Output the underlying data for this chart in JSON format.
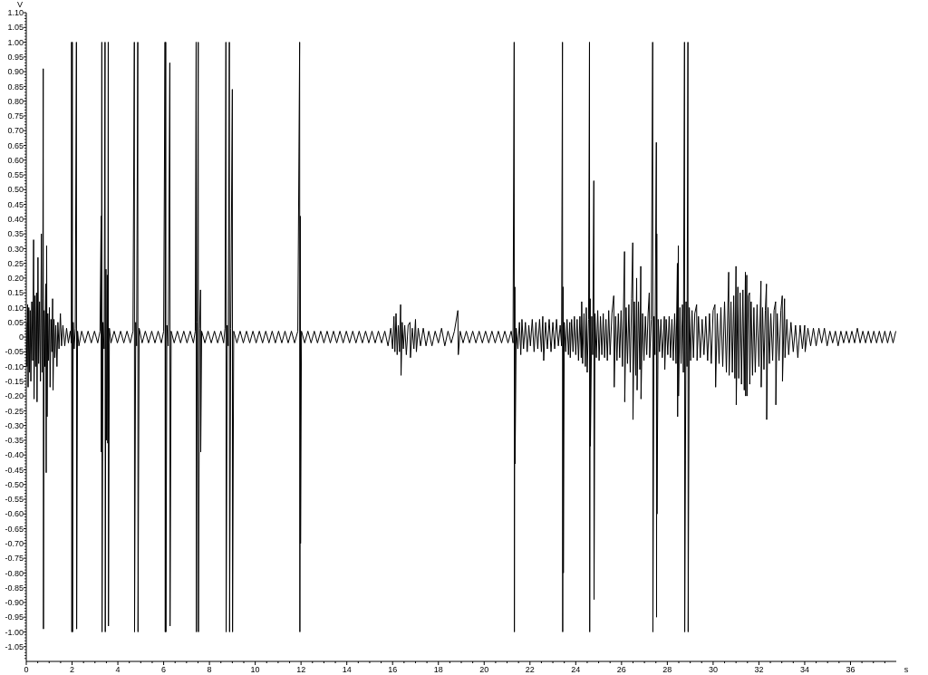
{
  "chart_data": {
    "type": "line",
    "xlabel": "s",
    "ylabel": "V",
    "color": "#000000",
    "marker": "none",
    "xlim": [
      0,
      38
    ],
    "ylim": [
      -1.1,
      1.1
    ],
    "xticks": [
      0,
      {
        "value": 0.5,
        "label": null
      },
      {
        "value": 1,
        "label": null
      },
      {
        "value": 1.5,
        "label": null
      },
      2,
      {
        "value": 2.5,
        "label": null
      },
      {
        "value": 3,
        "label": null
      },
      {
        "value": 3.5,
        "label": null
      },
      4,
      {
        "value": 4.5,
        "label": null
      },
      {
        "value": 5,
        "label": null
      },
      {
        "value": 5.5,
        "label": null
      },
      6,
      {
        "value": 6.5,
        "label": null
      },
      {
        "value": 7,
        "label": null
      },
      {
        "value": 7.5,
        "label": null
      },
      8,
      {
        "value": 8.5,
        "label": null
      },
      {
        "value": 9,
        "label": null
      },
      {
        "value": 9.5,
        "label": null
      },
      10,
      {
        "value": 10.5,
        "label": null
      },
      {
        "value": 11,
        "label": null
      },
      {
        "value": 11.5,
        "label": null
      },
      12,
      {
        "value": 12.5,
        "label": null
      },
      {
        "value": 13,
        "label": null
      },
      {
        "value": 13.5,
        "label": null
      },
      14,
      {
        "value": 14.5,
        "label": null
      },
      {
        "value": 15,
        "label": null
      },
      {
        "value": 15.5,
        "label": null
      },
      16,
      {
        "value": 16.5,
        "label": null
      },
      {
        "value": 17,
        "label": null
      },
      {
        "value": 17.5,
        "label": null
      },
      18,
      {
        "value": 18.5,
        "label": null
      },
      {
        "value": 19,
        "label": null
      },
      {
        "value": 19.5,
        "label": null
      },
      20,
      {
        "value": 20.5,
        "label": null
      },
      {
        "value": 21,
        "label": null
      },
      {
        "value": 21.5,
        "label": null
      },
      22,
      {
        "value": 22.5,
        "label": null
      },
      {
        "value": 23,
        "label": null
      },
      {
        "value": 23.5,
        "label": null
      },
      24,
      {
        "value": 24.5,
        "label": null
      },
      {
        "value": 25,
        "label": null
      },
      {
        "value": 25.5,
        "label": null
      },
      26,
      {
        "value": 26.5,
        "label": null
      },
      {
        "value": 27,
        "label": null
      },
      {
        "value": 27.5,
        "label": null
      },
      28,
      {
        "value": 28.5,
        "label": null
      },
      {
        "value": 29,
        "label": null
      },
      {
        "value": 29.5,
        "label": null
      },
      30,
      {
        "value": 30.5,
        "label": null
      },
      {
        "value": 31,
        "label": null
      },
      {
        "value": 31.5,
        "label": null
      },
      32,
      {
        "value": 32.5,
        "label": null
      },
      {
        "value": 33,
        "label": null
      },
      {
        "value": 33.5,
        "label": null
      },
      34,
      {
        "value": 34.5,
        "label": null
      },
      {
        "value": 35,
        "label": null
      },
      {
        "value": 35.5,
        "label": null
      },
      36,
      {
        "value": 36.5,
        "label": null
      },
      {
        "value": 37,
        "label": null
      },
      {
        "value": 37.5,
        "label": null
      }
    ],
    "yticks": [
      {
        "value": -1.09,
        "label": null
      },
      {
        "value": -1.08,
        "label": null
      },
      {
        "value": -1.07,
        "label": null
      },
      {
        "value": -1.06,
        "label": null
      },
      -1.05,
      {
        "value": -1.04,
        "label": null
      },
      {
        "value": -1.03,
        "label": null
      },
      {
        "value": -1.02,
        "label": null
      },
      {
        "value": -1.01,
        "label": null
      },
      {
        "value": -1,
        "label": "-1.00"
      },
      {
        "value": -0.99,
        "label": null
      },
      {
        "value": -0.98,
        "label": null
      },
      {
        "value": -0.97,
        "label": null
      },
      {
        "value": -0.96,
        "label": null
      },
      -0.95,
      {
        "value": -0.94,
        "label": null
      },
      {
        "value": -0.93,
        "label": null
      },
      {
        "value": -0.92,
        "label": null
      },
      {
        "value": -0.91,
        "label": null
      },
      {
        "value": -0.9,
        "label": "-0.90"
      },
      {
        "value": -0.89,
        "label": null
      },
      {
        "value": -0.88,
        "label": null
      },
      {
        "value": -0.87,
        "label": null
      },
      {
        "value": -0.86,
        "label": null
      },
      -0.85,
      {
        "value": -0.84,
        "label": null
      },
      {
        "value": -0.83,
        "label": null
      },
      {
        "value": -0.82,
        "label": null
      },
      {
        "value": -0.81,
        "label": null
      },
      {
        "value": -0.8,
        "label": "-0.80"
      },
      {
        "value": -0.79,
        "label": null
      },
      {
        "value": -0.78,
        "label": null
      },
      {
        "value": -0.77,
        "label": null
      },
      {
        "value": -0.76,
        "label": null
      },
      -0.75,
      {
        "value": -0.74,
        "label": null
      },
      {
        "value": -0.73,
        "label": null
      },
      {
        "value": -0.72,
        "label": null
      },
      {
        "value": -0.71,
        "label": null
      },
      {
        "value": -0.7,
        "label": "-0.70"
      },
      {
        "value": -0.69,
        "label": null
      },
      {
        "value": -0.68,
        "label": null
      },
      {
        "value": -0.67,
        "label": null
      },
      {
        "value": -0.66,
        "label": null
      },
      -0.65,
      {
        "value": -0.64,
        "label": null
      },
      {
        "value": -0.63,
        "label": null
      },
      {
        "value": -0.62,
        "label": null
      },
      {
        "value": -0.61,
        "label": null
      },
      {
        "value": -0.6,
        "label": "-0.60"
      },
      {
        "value": -0.59,
        "label": null
      },
      {
        "value": -0.58,
        "label": null
      },
      {
        "value": -0.57,
        "label": null
      },
      {
        "value": -0.56,
        "label": null
      },
      -0.55,
      {
        "value": -0.54,
        "label": null
      },
      {
        "value": -0.53,
        "label": null
      },
      {
        "value": -0.52,
        "label": null
      },
      {
        "value": -0.51,
        "label": null
      },
      {
        "value": -0.5,
        "label": "-0.50"
      },
      {
        "value": -0.49,
        "label": null
      },
      {
        "value": -0.48,
        "label": null
      },
      {
        "value": -0.47,
        "label": null
      },
      {
        "value": -0.46,
        "label": null
      },
      -0.45,
      {
        "value": -0.44,
        "label": null
      },
      {
        "value": -0.43,
        "label": null
      },
      {
        "value": -0.42,
        "label": null
      },
      {
        "value": -0.41,
        "label": null
      },
      {
        "value": -0.4,
        "label": "-0.40"
      },
      {
        "value": -0.39,
        "label": null
      },
      {
        "value": -0.38,
        "label": null
      },
      {
        "value": -0.37,
        "label": null
      },
      {
        "value": -0.36,
        "label": null
      },
      -0.35,
      {
        "value": -0.34,
        "label": null
      },
      {
        "value": -0.33,
        "label": null
      },
      {
        "value": -0.32,
        "label": null
      },
      {
        "value": -0.31,
        "label": null
      },
      {
        "value": -0.3,
        "label": "-0.30"
      },
      {
        "value": -0.29,
        "label": null
      },
      {
        "value": -0.28,
        "label": null
      },
      {
        "value": -0.27,
        "label": null
      },
      {
        "value": -0.26,
        "label": null
      },
      -0.25,
      {
        "value": -0.24,
        "label": null
      },
      {
        "value": -0.23,
        "label": null
      },
      {
        "value": -0.22,
        "label": null
      },
      {
        "value": -0.21,
        "label": null
      },
      {
        "value": -0.2,
        "label": "-0.20"
      },
      {
        "value": -0.19,
        "label": null
      },
      {
        "value": -0.18,
        "label": null
      },
      {
        "value": -0.17,
        "label": null
      },
      {
        "value": -0.16,
        "label": null
      },
      -0.15,
      {
        "value": -0.14,
        "label": null
      },
      {
        "value": -0.13,
        "label": null
      },
      {
        "value": -0.12,
        "label": null
      },
      {
        "value": -0.11,
        "label": null
      },
      {
        "value": -0.1,
        "label": "-0.10"
      },
      {
        "value": -0.09,
        "label": null
      },
      {
        "value": -0.08,
        "label": null
      },
      {
        "value": -0.07,
        "label": null
      },
      {
        "value": -0.06,
        "label": null
      },
      -0.05,
      {
        "value": -0.04,
        "label": null
      },
      {
        "value": -0.03,
        "label": null
      },
      {
        "value": -0.02,
        "label": null
      },
      {
        "value": -0.01,
        "label": null
      },
      0,
      {
        "value": 0.01,
        "label": null
      },
      {
        "value": 0.02,
        "label": null
      },
      {
        "value": 0.03,
        "label": null
      },
      {
        "value": 0.04,
        "label": null
      },
      0.05,
      {
        "value": 0.06,
        "label": null
      },
      {
        "value": 0.07,
        "label": null
      },
      {
        "value": 0.08,
        "label": null
      },
      {
        "value": 0.09,
        "label": null
      },
      {
        "value": 0.1,
        "label": "0.10"
      },
      {
        "value": 0.11,
        "label": null
      },
      {
        "value": 0.12,
        "label": null
      },
      {
        "value": 0.13,
        "label": null
      },
      {
        "value": 0.14,
        "label": null
      },
      0.15,
      {
        "value": 0.16,
        "label": null
      },
      {
        "value": 0.17,
        "label": null
      },
      {
        "value": 0.18,
        "label": null
      },
      {
        "value": 0.19,
        "label": null
      },
      {
        "value": 0.2,
        "label": "0.20"
      },
      {
        "value": 0.21,
        "label": null
      },
      {
        "value": 0.22,
        "label": null
      },
      {
        "value": 0.23,
        "label": null
      },
      {
        "value": 0.24,
        "label": null
      },
      0.25,
      {
        "value": 0.26,
        "label": null
      },
      {
        "value": 0.27,
        "label": null
      },
      {
        "value": 0.28,
        "label": null
      },
      {
        "value": 0.29,
        "label": null
      },
      {
        "value": 0.3,
        "label": "0.30"
      },
      {
        "value": 0.31,
        "label": null
      },
      {
        "value": 0.32,
        "label": null
      },
      {
        "value": 0.33,
        "label": null
      },
      {
        "value": 0.34,
        "label": null
      },
      0.35,
      {
        "value": 0.36,
        "label": null
      },
      {
        "value": 0.37,
        "label": null
      },
      {
        "value": 0.38,
        "label": null
      },
      {
        "value": 0.39,
        "label": null
      },
      {
        "value": 0.4,
        "label": "0.40"
      },
      {
        "value": 0.41,
        "label": null
      },
      {
        "value": 0.42,
        "label": null
      },
      {
        "value": 0.43,
        "label": null
      },
      {
        "value": 0.44,
        "label": null
      },
      0.45,
      {
        "value": 0.46,
        "label": null
      },
      {
        "value": 0.47,
        "label": null
      },
      {
        "value": 0.48,
        "label": null
      },
      {
        "value": 0.49,
        "label": null
      },
      {
        "value": 0.5,
        "label": "0.50"
      },
      {
        "value": 0.51,
        "label": null
      },
      {
        "value": 0.52,
        "label": null
      },
      {
        "value": 0.53,
        "label": null
      },
      {
        "value": 0.54,
        "label": null
      },
      0.55,
      {
        "value": 0.56,
        "label": null
      },
      {
        "value": 0.57,
        "label": null
      },
      {
        "value": 0.58,
        "label": null
      },
      {
        "value": 0.59,
        "label": null
      },
      {
        "value": 0.6,
        "label": "0.60"
      },
      {
        "value": 0.61,
        "label": null
      },
      {
        "value": 0.62,
        "label": null
      },
      {
        "value": 0.63,
        "label": null
      },
      {
        "value": 0.64,
        "label": null
      },
      0.65,
      {
        "value": 0.66,
        "label": null
      },
      {
        "value": 0.67,
        "label": null
      },
      {
        "value": 0.68,
        "label": null
      },
      {
        "value": 0.69,
        "label": null
      },
      {
        "value": 0.7,
        "label": "0.70"
      },
      {
        "value": 0.71,
        "label": null
      },
      {
        "value": 0.72,
        "label": null
      },
      {
        "value": 0.73,
        "label": null
      },
      {
        "value": 0.74,
        "label": null
      },
      0.75,
      {
        "value": 0.76,
        "label": null
      },
      {
        "value": 0.77,
        "label": null
      },
      {
        "value": 0.78,
        "label": null
      },
      {
        "value": 0.79,
        "label": null
      },
      {
        "value": 0.8,
        "label": "0.80"
      },
      {
        "value": 0.81,
        "label": null
      },
      {
        "value": 0.82,
        "label": null
      },
      {
        "value": 0.83,
        "label": null
      },
      {
        "value": 0.84,
        "label": null
      },
      0.85,
      {
        "value": 0.86,
        "label": null
      },
      {
        "value": 0.87,
        "label": null
      },
      {
        "value": 0.88,
        "label": null
      },
      {
        "value": 0.89,
        "label": null
      },
      {
        "value": 0.9,
        "label": "0.90"
      },
      {
        "value": 0.91,
        "label": null
      },
      {
        "value": 0.92,
        "label": null
      },
      {
        "value": 0.93,
        "label": null
      },
      {
        "value": 0.94,
        "label": null
      },
      0.95,
      {
        "value": 0.96,
        "label": null
      },
      {
        "value": 0.97,
        "label": null
      },
      {
        "value": 0.98,
        "label": null
      },
      {
        "value": 0.99,
        "label": null
      },
      {
        "value": 1,
        "label": "1.00"
      },
      {
        "value": 1.01,
        "label": null
      },
      {
        "value": 1.02,
        "label": null
      },
      {
        "value": 1.03,
        "label": null
      },
      {
        "value": 1.04,
        "label": null
      },
      1.05,
      {
        "value": 1.06,
        "label": null
      },
      {
        "value": 1.07,
        "label": null
      },
      {
        "value": 1.08,
        "label": null
      },
      {
        "value": 1.09,
        "label": null
      },
      {
        "value": 1.1,
        "label": "1.10"
      }
    ],
    "x": [
      0,
      0.03,
      0.06,
      0.08,
      0.11,
      0.14,
      0.17,
      0.2,
      0.24,
      0.28,
      0.32,
      0.34,
      0.38,
      0.41,
      0.45,
      0.47,
      0.51,
      0.54,
      0.58,
      0.62,
      0.66,
      0.69,
      0.72,
      0.74,
      0.75,
      0.78,
      0.81,
      0.85,
      0.87,
      0.89,
      0.91,
      0.94,
      0.97,
      1.01,
      1.04,
      1.08,
      1.12,
      1.15,
      1.17,
      1.21,
      1.25,
      1.29,
      1.34,
      1.38,
      1.43,
      1.49,
      1.54,
      1.6,
      1.68,
      1.76,
      1.84,
      1.92,
      1.97,
      1.98,
      1.99,
      2.01,
      2.02,
      2.05,
      2.09,
      2.14,
      2.19,
      2.2,
      2.24,
      2.3,
      2.42,
      2.56,
      2.7,
      2.84,
      2.98,
      3.12,
      3.22,
      3.27,
      3.28,
      3.3,
      3.31,
      3.35,
      3.4,
      3.44,
      3.45,
      3.48,
      3.5,
      3.54,
      3.56,
      3.58,
      3.59,
      3.63,
      3.7,
      3.84,
      3.98,
      4.12,
      4.26,
      4.4,
      4.54,
      4.66,
      4.72,
      4.73,
      4.78,
      4.82,
      4.87,
      4.88,
      4.93,
      5.06,
      5.2,
      5.34,
      5.48,
      5.62,
      5.76,
      5.9,
      6,
      6.06,
      6.07,
      6.09,
      6.1,
      6.14,
      6.2,
      6.27,
      6.28,
      6.33,
      6.46,
      6.6,
      6.74,
      6.88,
      7.02,
      7.16,
      7.3,
      7.38,
      7.42,
      7.43,
      7.47,
      7.51,
      7.52,
      7.57,
      7.61,
      7.62,
      7.66,
      7.8,
      7.94,
      8.08,
      8.22,
      8.36,
      8.5,
      8.62,
      8.68,
      8.72,
      8.73,
      8.78,
      8.82,
      8.87,
      8.88,
      8.93,
      9,
      9.01,
      9.06,
      9.2,
      9.34,
      9.48,
      9.62,
      9.76,
      9.9,
      10.04,
      10.18,
      10.32,
      10.46,
      10.6,
      10.74,
      10.88,
      11.02,
      11.16,
      11.3,
      11.44,
      11.58,
      11.72,
      11.86,
      11.94,
      11.95,
      11.97,
      11.98,
      12.02,
      12.16,
      12.3,
      12.44,
      12.58,
      12.72,
      12.86,
      13,
      13.14,
      13.28,
      13.42,
      13.56,
      13.7,
      13.84,
      13.98,
      14.12,
      14.26,
      14.4,
      14.54,
      14.68,
      14.82,
      14.96,
      15.1,
      15.24,
      15.38,
      15.52,
      15.66,
      15.8,
      15.92,
      16,
      16.06,
      16.1,
      16.15,
      16.2,
      16.25,
      16.3,
      16.35,
      16.37,
      16.42,
      16.47,
      16.53,
      16.6,
      16.68,
      16.76,
      16.78,
      16.86,
      16.93,
      17,
      17.04,
      17.12,
      17.22,
      17.34,
      17.46,
      17.58,
      17.72,
      17.86,
      18,
      18.14,
      18.28,
      18.42,
      18.56,
      18.7,
      18.85,
      18.87,
      18.95,
      19.08,
      19.22,
      19.36,
      19.5,
      19.64,
      19.78,
      19.92,
      20.06,
      20.2,
      20.34,
      20.48,
      20.62,
      20.76,
      20.9,
      21.04,
      21.18,
      21.26,
      21.31,
      21.32,
      21.34,
      21.35,
      21.4,
      21.47,
      21.54,
      21.6,
      21.65,
      21.72,
      21.8,
      21.88,
      21.95,
      22.02,
      22.1,
      22.18,
      22.26,
      22.34,
      22.42,
      22.5,
      22.56,
      22.6,
      22.68,
      22.76,
      22.84,
      22.92,
      23,
      23.08,
      23.16,
      23.24,
      23.32,
      23.38,
      23.42,
      23.43,
      23.45,
      23.46,
      23.5,
      23.56,
      23.62,
      23.68,
      23.74,
      23.76,
      23.82,
      23.88,
      23.94,
      24,
      24.06,
      24.12,
      24.18,
      24.24,
      24.26,
      24.3,
      24.36,
      24.42,
      24.46,
      24.5,
      24.56,
      24.6,
      24.61,
      24.63,
      24.64,
      24.7,
      24.74,
      24.79,
      24.8,
      24.84,
      24.9,
      24.96,
      25.02,
      25.08,
      25.14,
      25.2,
      25.26,
      25.32,
      25.38,
      25.44,
      25.5,
      25.58,
      25.66,
      25.68,
      25.74,
      25.8,
      25.86,
      25.92,
      25.98,
      26.04,
      26.13,
      26.14,
      26.2,
      26.26,
      26.32,
      26.38,
      26.44,
      26.49,
      26.5,
      26.56,
      26.62,
      26.66,
      26.68,
      26.74,
      26.8,
      26.84,
      26.85,
      26.92,
      26.98,
      27.04,
      27.1,
      27.16,
      27.21,
      27.23,
      27.3,
      27.36,
      27.37,
      27.42,
      27.46,
      27.52,
      27.53,
      27.54,
      27.55,
      27.6,
      27.66,
      27.72,
      27.78,
      27.87,
      27.89,
      27.95,
      28.02,
      28.08,
      28.14,
      28.2,
      28.26,
      28.32,
      28.38,
      28.44,
      28.45,
      28.48,
      28.49,
      28.55,
      28.6,
      28.66,
      28.7,
      28.75,
      28.76,
      28.82,
      28.86,
      28.9,
      28.91,
      28.96,
      29.02,
      29.08,
      29.14,
      29.2,
      29.28,
      29.3,
      29.36,
      29.44,
      29.52,
      29.6,
      29.68,
      29.76,
      29.84,
      29.92,
      30,
      30.08,
      30.11,
      30.18,
      30.26,
      30.34,
      30.42,
      30.5,
      30.58,
      30.68,
      30.7,
      30.78,
      30.84,
      30.9,
      30.95,
      31,
      31.01,
      31.08,
      31.12,
      31.18,
      31.24,
      31.3,
      31.36,
      31.41,
      31.42,
      31.47,
      31.48,
      31.54,
      31.59,
      31.6,
      31.66,
      31.72,
      31.78,
      31.84,
      31.92,
      32,
      32.09,
      32.1,
      32.16,
      32.22,
      32.28,
      32.33,
      32.34,
      32.4,
      32.46,
      32.52,
      32.6,
      32.66,
      32.73,
      32.74,
      32.8,
      32.88,
      32.96,
      33.02,
      33.03,
      33.12,
      33.14,
      33.22,
      33.3,
      33.4,
      33.5,
      33.6,
      33.7,
      33.8,
      33.9,
      34,
      34.02,
      34.14,
      34.26,
      34.38,
      34.5,
      34.62,
      34.74,
      34.86,
      34.98,
      35.1,
      35.22,
      35.34,
      35.46,
      35.58,
      35.7,
      35.82,
      35.94,
      36.06,
      36.18,
      36.3,
      36.42,
      36.54,
      36.66,
      36.78,
      36.9,
      37.02,
      37.14,
      37.26,
      37.38,
      37.5,
      37.62,
      37.74,
      37.86,
      37.98
    ],
    "values": [
      0.05,
      -0.1,
      0.11,
      -0.17,
      0.1,
      -0.12,
      0.09,
      -0.15,
      0.12,
      -0.08,
      0.33,
      -0.21,
      0.14,
      -0.1,
      0.15,
      -0.22,
      0.27,
      -0.09,
      0.12,
      -0.15,
      0.35,
      -0.12,
      0.13,
      0.91,
      -0.99,
      0.09,
      -0.1,
      0.18,
      -0.46,
      0.31,
      -0.27,
      0.08,
      -0.08,
      0.1,
      -0.17,
      0.06,
      -0.05,
      0.13,
      -0.18,
      0.06,
      -0.07,
      0.04,
      -0.1,
      0.05,
      -0.04,
      0.08,
      -0.03,
      0.04,
      -0.03,
      0.03,
      -0.02,
      0.02,
      -0.02,
      1,
      -1,
      1,
      -1,
      0.05,
      -0.04,
      0.03,
      1,
      -0.99,
      0.02,
      -0.03,
      0.02,
      -0.02,
      0.02,
      -0.02,
      0.02,
      -0.02,
      0.02,
      0.41,
      -0.39,
      1,
      -1,
      0.05,
      -0.04,
      1,
      -1,
      0.23,
      -0.35,
      0.21,
      -0.36,
      1,
      -0.98,
      0.03,
      -0.02,
      0.02,
      -0.02,
      0.02,
      -0.02,
      0.02,
      -0.02,
      0.02,
      1,
      -1,
      0.05,
      -0.03,
      1,
      -1,
      0.03,
      -0.02,
      0.02,
      -0.02,
      0.02,
      -0.02,
      0.02,
      -0.02,
      0.02,
      1,
      -1,
      1,
      -1,
      0.04,
      -0.03,
      0.93,
      -0.98,
      0.02,
      -0.02,
      0.02,
      -0.02,
      0.02,
      -0.02,
      0.02,
      -0.02,
      0.02,
      1,
      -1,
      0.05,
      1,
      -1,
      0.03,
      0.16,
      -0.39,
      0.02,
      -0.02,
      0.02,
      -0.02,
      0.02,
      -0.02,
      0.02,
      -0.02,
      0.03,
      1,
      -1,
      0.04,
      -0.03,
      1,
      -1,
      0.03,
      0.84,
      -1,
      0.02,
      -0.02,
      0.02,
      -0.02,
      0.02,
      -0.02,
      0.02,
      -0.02,
      0.02,
      -0.02,
      0.02,
      -0.02,
      0.02,
      -0.02,
      0.02,
      -0.02,
      0.02,
      -0.02,
      0.02,
      -0.02,
      0.02,
      1,
      -1,
      0.41,
      -0.7,
      0.02,
      -0.02,
      0.02,
      -0.02,
      0.02,
      -0.02,
      0.02,
      -0.02,
      0.02,
      -0.02,
      0.02,
      -0.02,
      0.02,
      -0.02,
      0.02,
      -0.02,
      0.02,
      -0.02,
      0.02,
      -0.02,
      0.02,
      -0.02,
      0.02,
      -0.02,
      0.02,
      -0.02,
      0.02,
      -0.03,
      0.03,
      -0.04,
      0.07,
      -0.05,
      0.08,
      -0.06,
      0.04,
      -0.05,
      0.11,
      -0.13,
      0.05,
      -0.04,
      0.04,
      -0.06,
      0.04,
      0.05,
      -0.07,
      0.03,
      -0.04,
      0.06,
      -0.05,
      0.03,
      -0.03,
      0.03,
      -0.03,
      0.02,
      -0.03,
      0.02,
      -0.02,
      0.03,
      -0.03,
      0.02,
      -0.02,
      0.02,
      0.09,
      -0.06,
      0.02,
      -0.02,
      0.02,
      -0.02,
      0.02,
      -0.02,
      0.02,
      -0.02,
      0.02,
      -0.02,
      0.02,
      -0.02,
      0.02,
      -0.02,
      0.02,
      -0.02,
      0.02,
      -0.02,
      1,
      -1,
      0.17,
      -0.43,
      0.03,
      -0.04,
      0.05,
      -0.06,
      0.06,
      -0.04,
      0.05,
      -0.05,
      0.04,
      -0.03,
      0.06,
      -0.05,
      0.05,
      -0.04,
      0.06,
      -0.05,
      0.07,
      -0.08,
      0.05,
      -0.04,
      0.06,
      -0.05,
      0.05,
      -0.04,
      0.06,
      -0.03,
      0.04,
      -0.03,
      1,
      -1,
      0.17,
      -0.8,
      0.05,
      -0.05,
      0.06,
      -0.06,
      0.05,
      -0.07,
      0.06,
      -0.05,
      0.07,
      -0.06,
      0.06,
      -0.08,
      0.07,
      -0.07,
      0.12,
      -0.09,
      0.08,
      -0.1,
      0.1,
      -0.12,
      0.06,
      1,
      -1,
      0.13,
      -0.37,
      0.07,
      -0.06,
      0.53,
      -0.89,
      0.08,
      -0.07,
      0.09,
      -0.08,
      0.07,
      -0.06,
      0.08,
      -0.07,
      0.06,
      -0.08,
      0.09,
      -0.06,
      0.08,
      0.14,
      -0.17,
      0.07,
      -0.08,
      0.08,
      -0.07,
      0.09,
      -0.1,
      0.29,
      -0.22,
      0.1,
      -0.09,
      0.11,
      -0.12,
      0.13,
      0.32,
      -0.28,
      0.12,
      -0.13,
      0.2,
      -0.18,
      0.12,
      -0.11,
      0.24,
      -0.21,
      0.08,
      -0.08,
      0.07,
      -0.06,
      0.08,
      0.15,
      -0.07,
      0.06,
      1,
      -1,
      0.07,
      -0.06,
      0.66,
      -0.95,
      0.35,
      -0.6,
      0.06,
      -0.05,
      0.06,
      -0.07,
      0.07,
      -0.11,
      0.06,
      -0.06,
      0.07,
      -0.07,
      0.06,
      -0.08,
      0.08,
      -0.09,
      0.25,
      -0.27,
      0.31,
      -0.2,
      0.1,
      -0.09,
      0.11,
      -0.12,
      1,
      -1,
      0.12,
      -0.1,
      1,
      -1,
      0.1,
      -0.08,
      0.09,
      -0.07,
      0.08,
      0.11,
      -0.08,
      0.07,
      -0.07,
      0.06,
      -0.06,
      0.07,
      -0.08,
      0.08,
      -0.09,
      0.09,
      0.11,
      -0.17,
      0.08,
      -0.09,
      0.1,
      -0.1,
      0.12,
      -0.12,
      0.22,
      -0.13,
      0.12,
      -0.12,
      0.14,
      -0.14,
      0.24,
      -0.23,
      0.17,
      -0.14,
      0.15,
      -0.16,
      0.16,
      -0.18,
      0.22,
      -0.2,
      0.21,
      -0.2,
      0.14,
      0.15,
      -0.16,
      0.12,
      -0.13,
      0.1,
      -0.12,
      0.11,
      -0.1,
      0.19,
      -0.17,
      0.1,
      -0.11,
      0.09,
      0.18,
      -0.28,
      0.1,
      -0.09,
      0.08,
      -0.08,
      0.09,
      0.12,
      -0.23,
      0.08,
      -0.08,
      0.09,
      0.14,
      -0.15,
      0.13,
      -0.07,
      0.06,
      -0.06,
      0.05,
      -0.05,
      0.04,
      -0.07,
      0.04,
      -0.04,
      0.04,
      -0.05,
      0.03,
      -0.03,
      0.03,
      -0.03,
      0.03,
      -0.02,
      0.03,
      -0.03,
      0.02,
      -0.02,
      0.02,
      -0.03,
      0.02,
      -0.02,
      0.02,
      -0.02,
      0.02,
      -0.02,
      0.03,
      -0.02,
      0.02,
      -0.02,
      0.02,
      -0.02,
      0.02,
      -0.02,
      0.02,
      -0.02,
      0.02,
      -0.02,
      0.02,
      -0.02,
      0.02
    ]
  }
}
